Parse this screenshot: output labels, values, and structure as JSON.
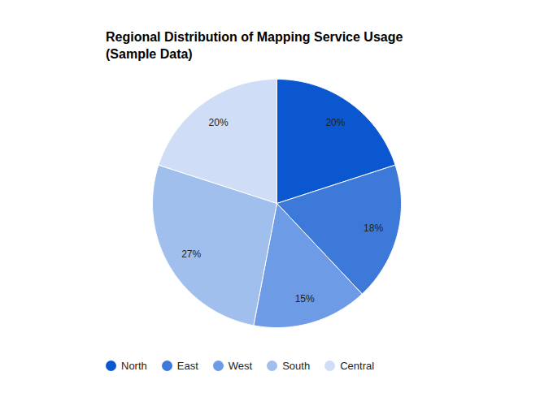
{
  "chart_data": {
    "type": "pie",
    "title": "Regional Distribution of Mapping Service Usage",
    "subtitle": "(Sample Data)",
    "categories": [
      "North",
      "East",
      "West",
      "South",
      "Central"
    ],
    "values": [
      20,
      18,
      15,
      27,
      20
    ],
    "value_labels": [
      "20%",
      "18%",
      "15%",
      "27%",
      "20%"
    ],
    "colors": [
      "#0b57d0",
      "#3d79d8",
      "#6d9be6",
      "#a1bfec",
      "#cfdef6"
    ],
    "data_labels": true,
    "legend": "bottom"
  }
}
